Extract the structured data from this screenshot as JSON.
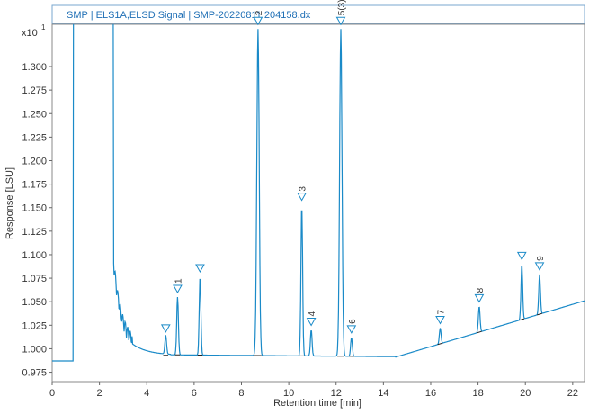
{
  "chart_data": {
    "type": "line",
    "title": "SMP | ELS1A,ELSD Signal | SMP-20220811 204158.dx",
    "xlabel": "Retention time [min]",
    "ylabel": "Response [LSU]",
    "y_multiplier_label": "x10",
    "y_multiplier_exp": "1",
    "xlim": [
      0,
      22.5
    ],
    "ylim": [
      0.965,
      1.345
    ],
    "x_ticks": [
      "0",
      "2",
      "4",
      "6",
      "8",
      "10",
      "12",
      "14",
      "16",
      "18",
      "20",
      "22"
    ],
    "y_ticks": [
      "0.975",
      "1.000",
      "1.025",
      "1.050",
      "1.075",
      "1.100",
      "1.125",
      "1.150",
      "1.175",
      "1.200",
      "1.225",
      "1.250",
      "1.275",
      "1.300"
    ],
    "line_color": "#1a8ac8",
    "baseline_color": "#222222",
    "peaks": [
      {
        "label": "",
        "x": 4.8,
        "y": 1.013
      },
      {
        "label": "1",
        "x": 5.3,
        "y": 1.055
      },
      {
        "label": "",
        "x": 6.25,
        "y": 1.077
      },
      {
        "label": "2",
        "x": 8.7,
        "y": 1.34
      },
      {
        "label": "3",
        "x": 10.55,
        "y": 1.153
      },
      {
        "label": "4",
        "x": 10.95,
        "y": 1.02
      },
      {
        "label": "5(3)",
        "x": 12.2,
        "y": 1.34
      },
      {
        "label": "6",
        "x": 12.65,
        "y": 1.012
      },
      {
        "label": "7",
        "x": 16.4,
        "y": 1.022
      },
      {
        "label": "8",
        "x": 18.05,
        "y": 1.045
      },
      {
        "label": "",
        "x": 19.85,
        "y": 1.09
      },
      {
        "label": "9",
        "x": 20.6,
        "y": 1.079
      }
    ]
  }
}
